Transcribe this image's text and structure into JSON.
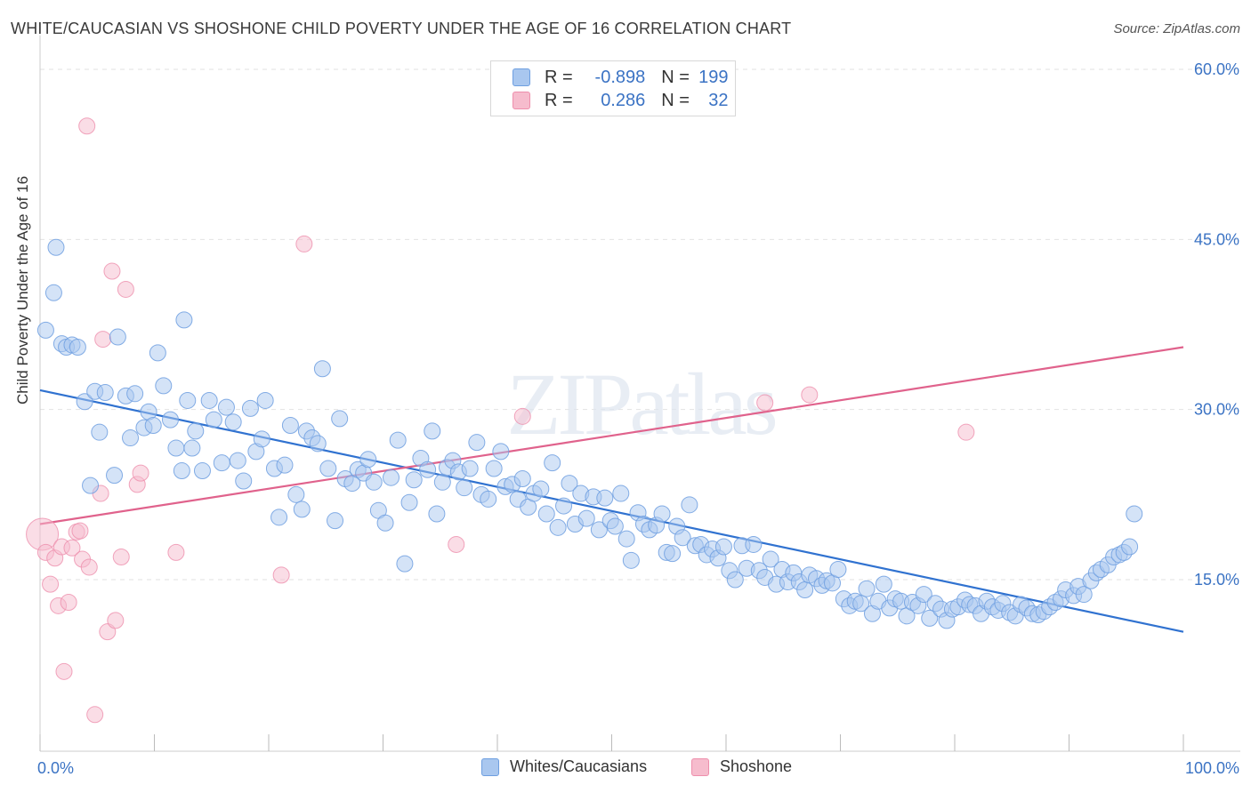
{
  "title": "WHITE/CAUCASIAN VS SHOSHONE CHILD POVERTY UNDER THE AGE OF 16 CORRELATION CHART",
  "source": "Source: ZipAtlas.com",
  "watermark": "ZIPatlas",
  "legend_top": {
    "row1": {
      "r_label": "R = ",
      "r_value": "-0.898",
      "n_label": "N = ",
      "n_value": "199"
    },
    "row2": {
      "r_label": "R = ",
      "r_value": "0.286",
      "n_label": "N = ",
      "n_value": "32"
    }
  },
  "legend_bottom": {
    "series1": "Whites/Caucasians",
    "series2": "Shoshone"
  },
  "colors": {
    "blue_fill": "#a9c7ef",
    "blue_stroke": "#6e9fe0",
    "blue_line": "#3072d0",
    "pink_fill": "#f6bccd",
    "pink_stroke": "#ee8fac",
    "pink_line": "#e0628c",
    "tick_text": "#3b73c4",
    "grid": "#e2e2e2"
  },
  "chart_data": {
    "type": "scatter",
    "title": "WHITE/CAUCASIAN VS SHOSHONE CHILD POVERTY UNDER THE AGE OF 16 CORRELATION CHART",
    "xlabel": "",
    "ylabel": "Child Poverty Under the Age of 16",
    "xlim": [
      0,
      100
    ],
    "ylim": [
      0,
      63
    ],
    "x_tick_labels": [
      "0.0%",
      "100.0%"
    ],
    "y_ticks": [
      15,
      30,
      45,
      60
    ],
    "y_tick_labels": [
      "15.0%",
      "30.0%",
      "45.0%",
      "60.0%"
    ],
    "grid": true,
    "legend_position": "top-center",
    "series": [
      {
        "name": "Whites/Caucasians",
        "r": -0.898,
        "n": 199,
        "trend": {
          "x": [
            0,
            100
          ],
          "y": [
            31.7,
            10.4
          ]
        },
        "points": [
          [
            0.5,
            37
          ],
          [
            1.2,
            40.3
          ],
          [
            1.4,
            44.3
          ],
          [
            1.9,
            35.8
          ],
          [
            2.3,
            35.5
          ],
          [
            2.8,
            35.7
          ],
          [
            3.3,
            35.5
          ],
          [
            3.9,
            30.7
          ],
          [
            4.4,
            23.3
          ],
          [
            4.8,
            31.6
          ],
          [
            5.2,
            28
          ],
          [
            5.7,
            31.5
          ],
          [
            6.5,
            24.2
          ],
          [
            6.8,
            36.4
          ],
          [
            7.5,
            31.2
          ],
          [
            7.9,
            27.5
          ],
          [
            8.3,
            31.4
          ],
          [
            9.1,
            28.4
          ],
          [
            9.5,
            29.8
          ],
          [
            9.9,
            28.6
          ],
          [
            10.3,
            35
          ],
          [
            10.8,
            32.1
          ],
          [
            11.4,
            29.1
          ],
          [
            11.9,
            26.6
          ],
          [
            12.4,
            24.6
          ],
          [
            12.6,
            37.9
          ],
          [
            12.9,
            30.8
          ],
          [
            13.3,
            26.6
          ],
          [
            13.6,
            28.1
          ],
          [
            14.2,
            24.6
          ],
          [
            14.8,
            30.8
          ],
          [
            15.2,
            29.1
          ],
          [
            15.9,
            25.3
          ],
          [
            16.3,
            30.2
          ],
          [
            16.9,
            28.9
          ],
          [
            17.3,
            25.5
          ],
          [
            17.8,
            23.7
          ],
          [
            18.4,
            30.1
          ],
          [
            18.9,
            26.3
          ],
          [
            19.4,
            27.4
          ],
          [
            19.7,
            30.8
          ],
          [
            20.5,
            24.8
          ],
          [
            20.9,
            20.5
          ],
          [
            21.4,
            25.1
          ],
          [
            21.9,
            28.6
          ],
          [
            22.4,
            22.5
          ],
          [
            22.9,
            21.2
          ],
          [
            23.3,
            28.1
          ],
          [
            23.8,
            27.5
          ],
          [
            24.3,
            27
          ],
          [
            24.7,
            33.6
          ],
          [
            25.2,
            24.8
          ],
          [
            25.8,
            20.2
          ],
          [
            26.2,
            29.2
          ],
          [
            26.7,
            23.9
          ],
          [
            27.3,
            23.5
          ],
          [
            27.8,
            24.7
          ],
          [
            28.3,
            24.4
          ],
          [
            28.7,
            25.6
          ],
          [
            29.2,
            23.6
          ],
          [
            29.6,
            21.1
          ],
          [
            30.2,
            20
          ],
          [
            30.7,
            24
          ],
          [
            31.3,
            27.3
          ],
          [
            31.9,
            16.4
          ],
          [
            32.3,
            21.8
          ],
          [
            32.7,
            23.8
          ],
          [
            33.3,
            25.7
          ],
          [
            33.9,
            24.7
          ],
          [
            34.3,
            28.1
          ],
          [
            34.7,
            20.8
          ],
          [
            35.2,
            23.6
          ],
          [
            35.6,
            24.9
          ],
          [
            36.1,
            25.5
          ],
          [
            36.6,
            24.5
          ],
          [
            37.1,
            23.1
          ],
          [
            37.6,
            24.8
          ],
          [
            38.2,
            27.1
          ],
          [
            38.6,
            22.5
          ],
          [
            39.2,
            22.1
          ],
          [
            39.7,
            24.8
          ],
          [
            40.3,
            26.3
          ],
          [
            40.7,
            23.2
          ],
          [
            41.3,
            23.4
          ],
          [
            41.8,
            22.1
          ],
          [
            42.2,
            23.9
          ],
          [
            42.7,
            21.4
          ],
          [
            43.2,
            22.6
          ],
          [
            43.8,
            23
          ],
          [
            44.3,
            20.8
          ],
          [
            44.8,
            25.3
          ],
          [
            45.3,
            19.6
          ],
          [
            45.8,
            21.5
          ],
          [
            46.3,
            23.5
          ],
          [
            46.8,
            19.9
          ],
          [
            47.3,
            22.6
          ],
          [
            47.8,
            20.4
          ],
          [
            48.4,
            22.3
          ],
          [
            48.9,
            19.4
          ],
          [
            49.4,
            22.2
          ],
          [
            49.9,
            20.2
          ],
          [
            50.3,
            19.7
          ],
          [
            50.8,
            22.6
          ],
          [
            51.3,
            18.6
          ],
          [
            51.7,
            16.7
          ],
          [
            52.3,
            20.9
          ],
          [
            52.8,
            19.9
          ],
          [
            53.3,
            19.4
          ],
          [
            53.9,
            19.8
          ],
          [
            54.4,
            20.8
          ],
          [
            54.8,
            17.4
          ],
          [
            55.3,
            17.3
          ],
          [
            55.7,
            19.7
          ],
          [
            56.2,
            18.7
          ],
          [
            56.8,
            21.6
          ],
          [
            57.3,
            18
          ],
          [
            57.8,
            18.1
          ],
          [
            58.3,
            17.2
          ],
          [
            58.8,
            17.7
          ],
          [
            59.3,
            16.9
          ],
          [
            59.8,
            17.9
          ],
          [
            60.3,
            15.8
          ],
          [
            60.8,
            15
          ],
          [
            61.4,
            18
          ],
          [
            61.8,
            16
          ],
          [
            62.4,
            18.1
          ],
          [
            62.9,
            15.8
          ],
          [
            63.4,
            15.2
          ],
          [
            63.9,
            16.8
          ],
          [
            64.4,
            14.6
          ],
          [
            64.9,
            15.9
          ],
          [
            65.4,
            14.8
          ],
          [
            65.9,
            15.6
          ],
          [
            66.4,
            14.8
          ],
          [
            66.9,
            14.1
          ],
          [
            67.3,
            15.4
          ],
          [
            67.9,
            15.1
          ],
          [
            68.4,
            14.5
          ],
          [
            68.8,
            14.9
          ],
          [
            69.3,
            14.7
          ],
          [
            69.8,
            15.9
          ],
          [
            70.3,
            13.3
          ],
          [
            70.8,
            12.7
          ],
          [
            71.3,
            13.1
          ],
          [
            71.8,
            12.9
          ],
          [
            72.3,
            14.2
          ],
          [
            72.8,
            12
          ],
          [
            73.3,
            13.1
          ],
          [
            73.8,
            14.6
          ],
          [
            74.3,
            12.5
          ],
          [
            74.8,
            13.3
          ],
          [
            75.3,
            13.1
          ],
          [
            75.8,
            11.8
          ],
          [
            76.3,
            13
          ],
          [
            76.8,
            12.7
          ],
          [
            77.3,
            13.7
          ],
          [
            77.8,
            11.6
          ],
          [
            78.3,
            12.9
          ],
          [
            78.8,
            12.4
          ],
          [
            79.3,
            11.4
          ],
          [
            79.8,
            12.4
          ],
          [
            80.3,
            12.6
          ],
          [
            80.9,
            13.2
          ],
          [
            81.3,
            12.8
          ],
          [
            81.8,
            12.7
          ],
          [
            82.3,
            12
          ],
          [
            82.8,
            13.1
          ],
          [
            83.3,
            12.6
          ],
          [
            83.8,
            12.3
          ],
          [
            84.2,
            12.9
          ],
          [
            84.8,
            12.1
          ],
          [
            85.3,
            11.8
          ],
          [
            85.8,
            12.8
          ],
          [
            86.3,
            12.5
          ],
          [
            86.8,
            12
          ],
          [
            87.3,
            11.9
          ],
          [
            87.8,
            12.2
          ],
          [
            88.3,
            12.6
          ],
          [
            88.8,
            13
          ],
          [
            89.3,
            13.3
          ],
          [
            89.7,
            14.1
          ],
          [
            90.4,
            13.6
          ],
          [
            90.8,
            14.4
          ],
          [
            91.3,
            13.7
          ],
          [
            91.9,
            14.9
          ],
          [
            92.4,
            15.6
          ],
          [
            92.8,
            15.9
          ],
          [
            93.4,
            16.3
          ],
          [
            93.9,
            17
          ],
          [
            94.4,
            17.2
          ],
          [
            94.8,
            17.4
          ],
          [
            95.3,
            17.9
          ],
          [
            95.7,
            20.8
          ]
        ]
      },
      {
        "name": "Shoshone",
        "r": 0.286,
        "n": 32,
        "trend": {
          "x": [
            0,
            100
          ],
          "y": [
            19.9,
            35.5
          ]
        },
        "points": [
          [
            0.2,
            19
          ],
          [
            0.5,
            17.4
          ],
          [
            0.9,
            14.6
          ],
          [
            1.3,
            16.9
          ],
          [
            1.6,
            12.7
          ],
          [
            1.9,
            17.9
          ],
          [
            2.1,
            6.9
          ],
          [
            2.5,
            13
          ],
          [
            2.8,
            17.8
          ],
          [
            3.2,
            19.2
          ],
          [
            3.5,
            19.3
          ],
          [
            3.7,
            16.8
          ],
          [
            4.1,
            55
          ],
          [
            4.3,
            16.1
          ],
          [
            4.8,
            3.1
          ],
          [
            5.3,
            22.6
          ],
          [
            5.5,
            36.2
          ],
          [
            5.9,
            10.4
          ],
          [
            6.3,
            42.2
          ],
          [
            6.6,
            11.4
          ],
          [
            7.1,
            17
          ],
          [
            7.5,
            40.6
          ],
          [
            8.5,
            23.4
          ],
          [
            8.8,
            24.4
          ],
          [
            11.9,
            17.4
          ],
          [
            21.1,
            15.4
          ],
          [
            23.1,
            44.6
          ],
          [
            36.4,
            18.1
          ],
          [
            42.2,
            29.4
          ],
          [
            63.4,
            30.6
          ],
          [
            67.3,
            31.3
          ],
          [
            81,
            28
          ]
        ]
      }
    ]
  }
}
